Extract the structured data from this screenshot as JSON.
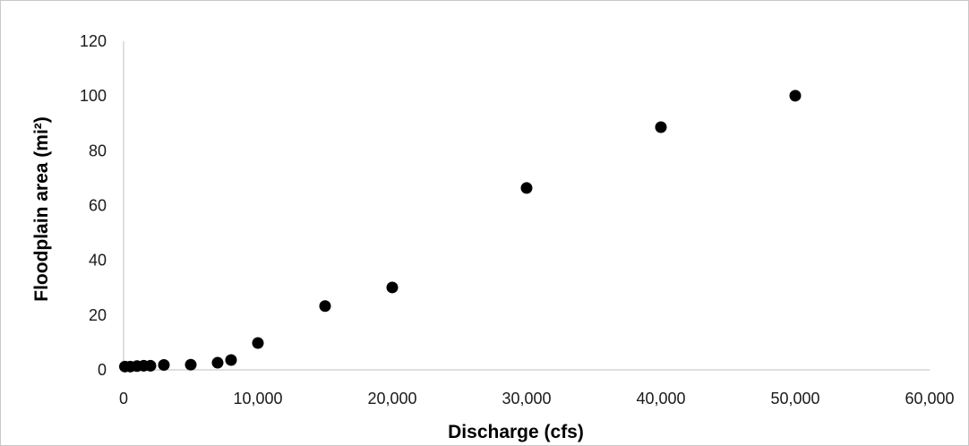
{
  "chart_data": {
    "type": "scatter",
    "title": "",
    "xlabel": "Discharge (cfs)",
    "ylabel": "Floodplain area (mi²)",
    "xlim": [
      0,
      60000
    ],
    "ylim": [
      0,
      120
    ],
    "x_ticks": [
      0,
      10000,
      20000,
      30000,
      40000,
      50000,
      60000
    ],
    "x_tick_labels": [
      "0",
      "10,000",
      "20,000",
      "30,000",
      "40,000",
      "50,000",
      "60,000"
    ],
    "y_ticks": [
      0,
      20,
      40,
      60,
      80,
      100,
      120
    ],
    "y_tick_labels": [
      "0",
      "20",
      "40",
      "60",
      "80",
      "100",
      "120"
    ],
    "grid": false,
    "legend": "none",
    "marker_color": "#000000",
    "series": [
      {
        "points": [
          {
            "x": 100,
            "y": 1.2
          },
          {
            "x": 500,
            "y": 1.2
          },
          {
            "x": 1000,
            "y": 1.4
          },
          {
            "x": 1500,
            "y": 1.5
          },
          {
            "x": 2000,
            "y": 1.5
          },
          {
            "x": 3000,
            "y": 1.8
          },
          {
            "x": 5000,
            "y": 1.9
          },
          {
            "x": 7000,
            "y": 2.6
          },
          {
            "x": 8000,
            "y": 3.6
          },
          {
            "x": 10000,
            "y": 9.8
          },
          {
            "x": 15000,
            "y": 23.3
          },
          {
            "x": 20000,
            "y": 30.1
          },
          {
            "x": 30000,
            "y": 66.4
          },
          {
            "x": 40000,
            "y": 88.6
          },
          {
            "x": 50000,
            "y": 100.1
          }
        ]
      }
    ]
  }
}
